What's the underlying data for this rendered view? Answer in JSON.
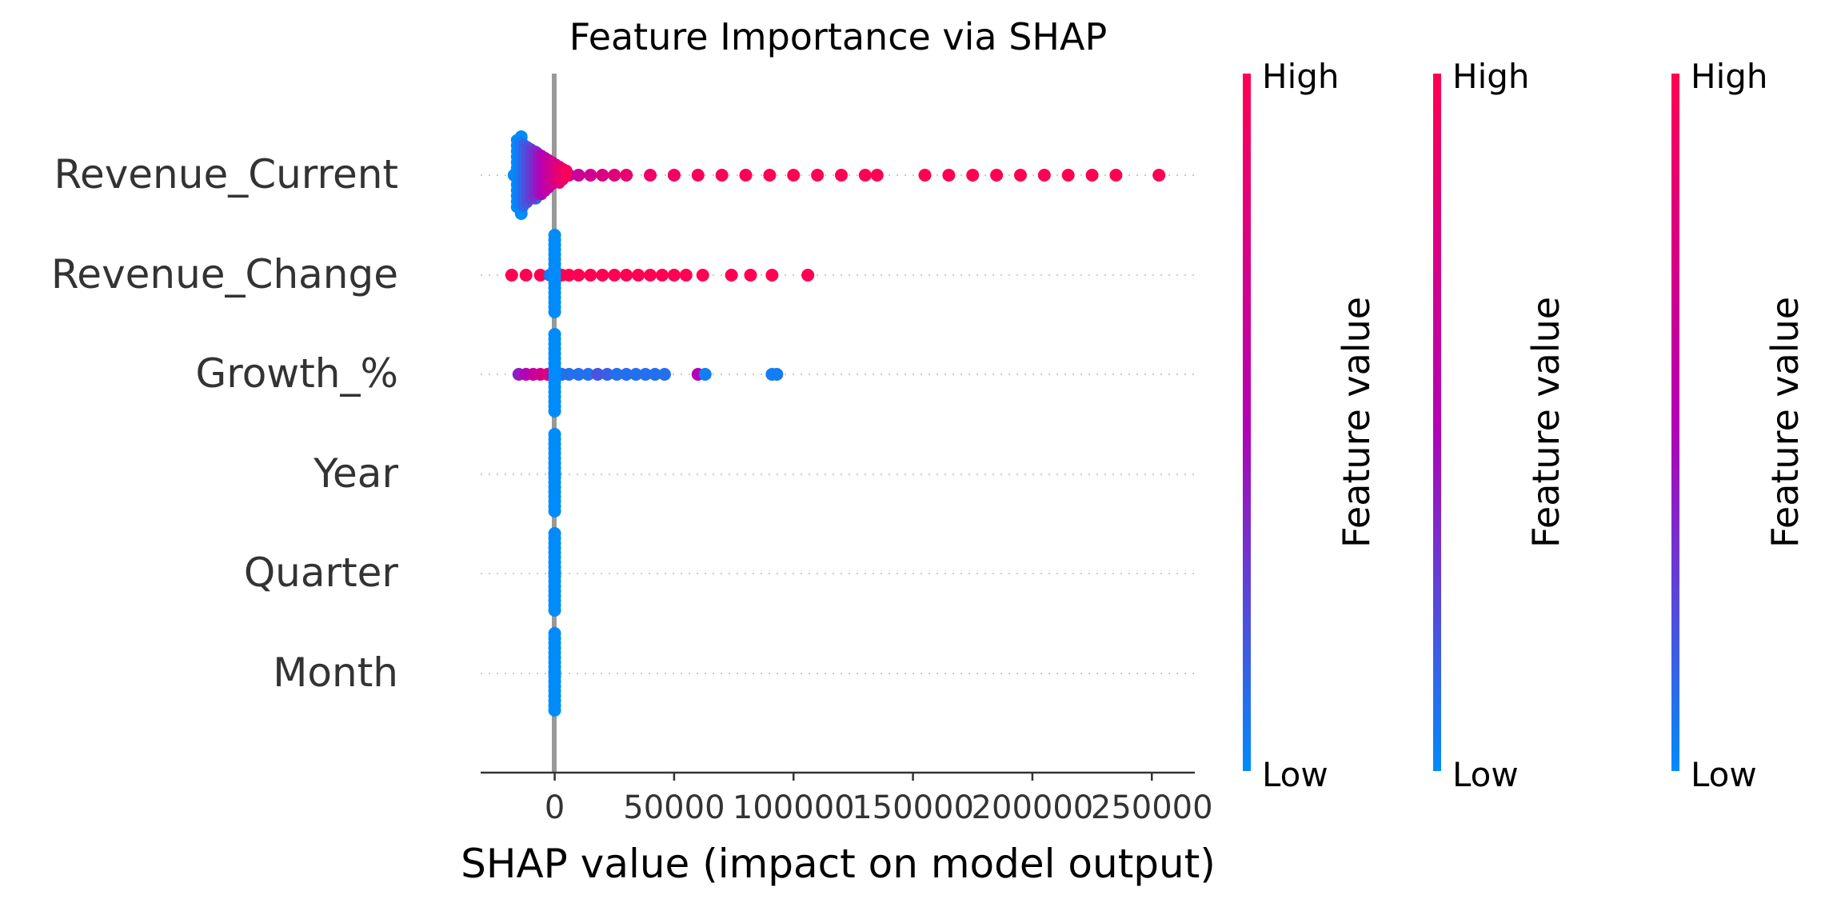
{
  "chart_data": {
    "type": "scatter",
    "title": "Feature Importance via SHAP",
    "xlabel": "SHAP value (impact on model output)",
    "xlim": [
      -31000,
      268000
    ],
    "xticks": [
      0,
      50000,
      100000,
      150000,
      200000,
      250000
    ],
    "xtick_labels": [
      "0",
      "50000",
      "100000",
      "150000",
      "200000",
      "250000"
    ],
    "features": [
      "Revenue_Current",
      "Revenue_Change",
      "Growth_%",
      "Year",
      "Quarter",
      "Month"
    ],
    "series": [
      {
        "feature": "Revenue_Current",
        "points": [
          [
            -17000,
            0
          ],
          [
            -16000,
            0.05
          ],
          [
            -15000,
            0.1
          ],
          [
            -14000,
            0.08
          ],
          [
            -13000,
            0.1
          ],
          [
            -12000,
            0.05
          ],
          [
            -11000,
            0.1
          ],
          [
            -10000,
            0.15
          ],
          [
            -9000,
            0.2
          ],
          [
            -8000,
            0.25
          ],
          [
            -7000,
            0.3
          ],
          [
            -6000,
            0.35
          ],
          [
            -5000,
            0.4
          ],
          [
            -4000,
            0.42
          ],
          [
            -3000,
            0.45
          ],
          [
            -2000,
            0.48
          ],
          [
            0,
            0.5
          ],
          [
            3000,
            0.55
          ],
          [
            6000,
            0.6
          ],
          [
            10000,
            0.65
          ],
          [
            15000,
            0.7
          ],
          [
            20000,
            0.75
          ],
          [
            25000,
            0.8
          ],
          [
            30000,
            0.85
          ],
          [
            40000,
            0.9
          ],
          [
            50000,
            0.92
          ],
          [
            60000,
            0.95
          ],
          [
            70000,
            0.97
          ],
          [
            80000,
            0.98
          ],
          [
            90000,
            1
          ],
          [
            100000,
            1
          ],
          [
            110000,
            1
          ],
          [
            120000,
            1
          ],
          [
            130000,
            1
          ],
          [
            135000,
            1
          ],
          [
            155000,
            1
          ],
          [
            165000,
            1
          ],
          [
            175000,
            1
          ],
          [
            185000,
            1
          ],
          [
            195000,
            1
          ],
          [
            205000,
            1
          ],
          [
            215000,
            1
          ],
          [
            225000,
            1
          ],
          [
            235000,
            1
          ],
          [
            253000,
            1
          ]
        ]
      },
      {
        "feature": "Revenue_Change",
        "points": [
          [
            -18000,
            1
          ],
          [
            -12000,
            1
          ],
          [
            -6000,
            1
          ],
          [
            -2000,
            0.1
          ],
          [
            -1000,
            0.05
          ],
          [
            0,
            0.1
          ],
          [
            1000,
            0.15
          ],
          [
            3000,
            1
          ],
          [
            6000,
            1
          ],
          [
            10000,
            1
          ],
          [
            15000,
            1
          ],
          [
            20000,
            1
          ],
          [
            25000,
            1
          ],
          [
            30000,
            1
          ],
          [
            35000,
            1
          ],
          [
            40000,
            1
          ],
          [
            45000,
            1
          ],
          [
            50000,
            1
          ],
          [
            55000,
            1
          ],
          [
            62000,
            1
          ],
          [
            74000,
            1
          ],
          [
            82000,
            1
          ],
          [
            91000,
            1
          ],
          [
            106000,
            1
          ]
        ]
      },
      {
        "feature": "Growth_%",
        "points": [
          [
            -15000,
            0.4
          ],
          [
            -12000,
            0.5
          ],
          [
            -9000,
            0.6
          ],
          [
            -6000,
            0.7
          ],
          [
            -3000,
            0.8
          ],
          [
            -1000,
            0.6
          ],
          [
            0,
            0.5
          ],
          [
            1000,
            0.4
          ],
          [
            3000,
            0.1
          ],
          [
            6000,
            0.1
          ],
          [
            10000,
            0.1
          ],
          [
            14000,
            0.1
          ],
          [
            18000,
            0.2
          ],
          [
            22000,
            0.15
          ],
          [
            26000,
            0.1
          ],
          [
            30000,
            0.1
          ],
          [
            34000,
            0.1
          ],
          [
            38000,
            0.1
          ],
          [
            42000,
            0.1
          ],
          [
            46000,
            0.1
          ],
          [
            60000,
            0.5
          ],
          [
            63000,
            0.05
          ],
          [
            91000,
            0.05
          ],
          [
            93000,
            0.05
          ]
        ]
      },
      {
        "feature": "Year",
        "points": [
          [
            0,
            0
          ]
        ]
      },
      {
        "feature": "Quarter",
        "points": [
          [
            0,
            0
          ]
        ]
      },
      {
        "feature": "Month",
        "points": [
          [
            0,
            0
          ]
        ]
      }
    ],
    "colorbar": {
      "label": "Feature value",
      "high": "High",
      "low": "Low",
      "count": 3
    },
    "colors": {
      "low": "#008bfb",
      "mid": "#b400b6",
      "high": "#ff0052",
      "axis": "#333333",
      "zero_line": "#999999",
      "grid": "#cccccc"
    }
  }
}
